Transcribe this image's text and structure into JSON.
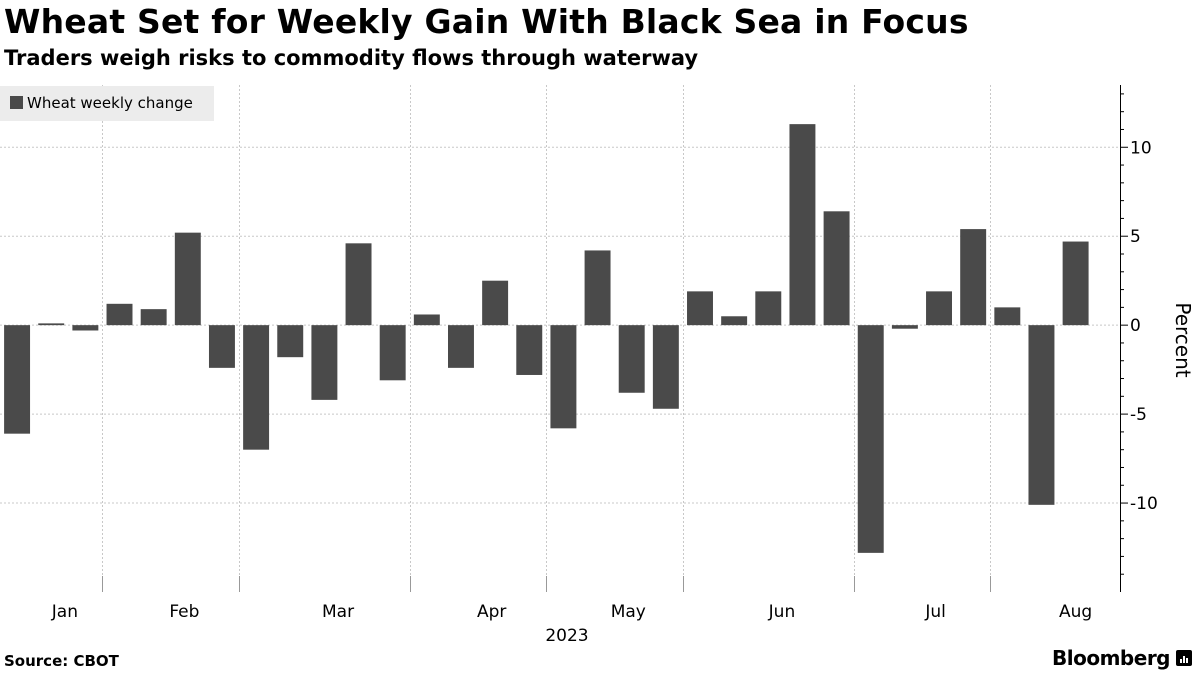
{
  "header": {
    "title": "Wheat Set for Weekly Gain With Black Sea in Focus",
    "subtitle": "Traders weigh risks to commodity flows through waterway"
  },
  "footer": {
    "source": "Source: CBOT",
    "brand": "Bloomberg"
  },
  "colors": {
    "bar": "#4a4a4a",
    "legend_bg": "#ececec",
    "grid": "#c8c8c8",
    "axis": "#000000"
  },
  "chart_data": {
    "type": "bar",
    "title": "Wheat Set for Weekly Gain With Black Sea in Focus",
    "subtitle": "Traders weigh risks to commodity flows through waterway",
    "legend": [
      "Wheat weekly change"
    ],
    "legend_position": "top-left",
    "xlabel": "2023",
    "ylabel": "Percent",
    "ylim": [
      -15,
      13.5
    ],
    "yticks": [
      10,
      5,
      0,
      -5,
      -10
    ],
    "ytick_labels": [
      "10",
      "5",
      "0",
      "-5",
      "-10"
    ],
    "grid": true,
    "x_start": -0.5,
    "x_end": 32.3,
    "months": [
      {
        "label": "Jan",
        "label_pos": 1.4,
        "grid_pos": 3
      },
      {
        "label": "Feb",
        "label_pos": 4.9,
        "grid_pos": 7
      },
      {
        "label": "Mar",
        "label_pos": 9.4,
        "grid_pos": 12
      },
      {
        "label": "Apr",
        "label_pos": 13.9,
        "grid_pos": 16
      },
      {
        "label": "May",
        "label_pos": 17.9,
        "grid_pos": 20
      },
      {
        "label": "Jun",
        "label_pos": 22.4,
        "grid_pos": 25
      },
      {
        "label": "Jul",
        "label_pos": 26.9,
        "grid_pos": 29
      },
      {
        "label": "Aug",
        "label_pos": 31.0,
        "grid_pos": null
      }
    ],
    "series": [
      {
        "name": "Wheat weekly change",
        "values": [
          -6.1,
          0.1,
          -0.3,
          1.2,
          0.9,
          5.2,
          -2.4,
          -7.0,
          -1.8,
          -4.2,
          4.6,
          -3.1,
          0.6,
          -2.4,
          2.5,
          -2.8,
          -5.8,
          4.2,
          -3.8,
          -4.7,
          1.9,
          0.5,
          1.9,
          11.3,
          6.4,
          -12.8,
          -0.2,
          1.9,
          5.4,
          1.0,
          -10.1,
          4.7
        ]
      }
    ]
  }
}
